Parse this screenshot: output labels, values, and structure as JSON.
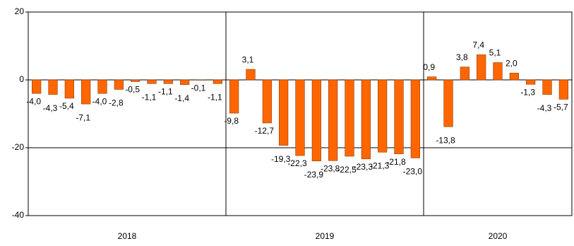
{
  "chart_data": {
    "type": "bar",
    "categories": [
      null,
      null,
      null,
      null,
      null,
      null,
      null,
      null,
      null,
      null,
      null,
      null,
      null,
      null,
      null,
      null,
      null,
      null,
      null,
      null,
      null,
      null,
      null,
      null,
      null,
      null,
      null,
      null,
      null,
      null,
      null,
      null,
      null
    ],
    "values": [
      -4.0,
      -4.3,
      -5.4,
      -7.1,
      -4.0,
      -2.8,
      -0.5,
      -1.1,
      -1.1,
      -1.4,
      -0.1,
      -1.1,
      -9.8,
      3.1,
      -12.7,
      -19.3,
      -22.3,
      -23.9,
      -23.8,
      -22.5,
      -23.3,
      -21.3,
      -21.8,
      -23.0,
      0.9,
      -13.8,
      3.8,
      7.4,
      5.1,
      2.0,
      -1.3,
      -4.3,
      -5.7
    ],
    "value_labels": [
      "-4,0",
      "-4,3",
      "-5,4",
      "-7,1",
      "-4,0",
      "-2,8",
      "-0,5",
      "-1,1",
      "-1,1",
      "-1,4",
      "-0,1",
      "-1,1",
      "-9,8",
      "3,1",
      "-12,7",
      "-19,3",
      "-22,3",
      "-23,9",
      "-23,8",
      "-22,5",
      "-23,3",
      "-21,3",
      "-21,8",
      "-23,0",
      "0,9",
      "-13,8",
      "3,8",
      "7,4",
      "5,1",
      "2,0",
      "-1,3",
      "-4,3",
      "-5,7"
    ],
    "x_groups": [
      {
        "label": "2018",
        "size": 12
      },
      {
        "label": "2019",
        "size": 12
      },
      {
        "label": "2020",
        "size": 9
      }
    ],
    "color": "#ff6600",
    "ylim": [
      -40,
      20
    ],
    "yticks": [
      -40,
      -20,
      0,
      20
    ],
    "grid": true
  }
}
